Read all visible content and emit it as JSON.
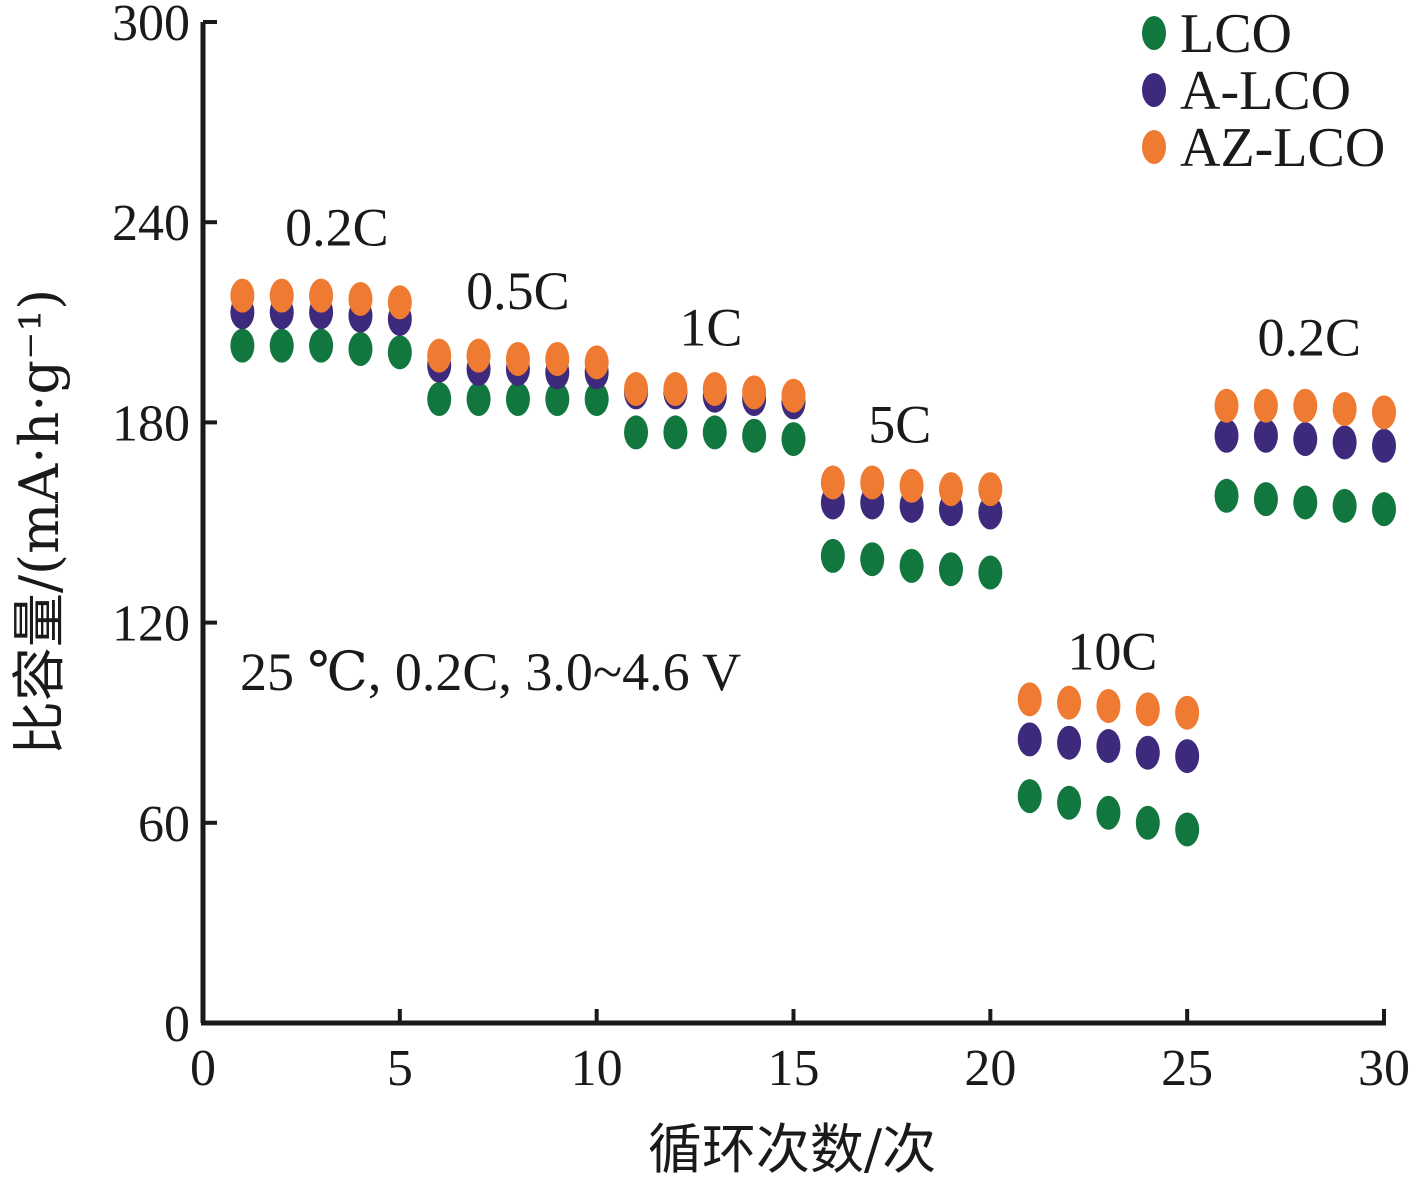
{
  "chart_data": {
    "type": "scatter",
    "xlabel": "循环次数/次",
    "ylabel": "比容量/(mA·h·g⁻¹)",
    "xlim": [
      0,
      30
    ],
    "ylim": [
      0,
      300
    ],
    "xticks": [
      0,
      5,
      10,
      15,
      20,
      25,
      30
    ],
    "yticks": [
      0,
      60,
      120,
      180,
      240,
      300
    ],
    "grid": false,
    "legend_position": "top-right",
    "condition_text": "25 ℃, 0.2C, 3.0~4.6 V",
    "rate_labels": [
      {
        "text": "0.2C",
        "x": 3.4,
        "y": 233
      },
      {
        "text": "0.5C",
        "x": 8.0,
        "y": 214
      },
      {
        "text": "1C",
        "x": 12.9,
        "y": 203
      },
      {
        "text": "5C",
        "x": 17.7,
        "y": 174
      },
      {
        "text": "10C",
        "x": 23.1,
        "y": 106
      },
      {
        "text": "0.2C",
        "x": 28.1,
        "y": 200
      }
    ],
    "x": [
      1,
      2,
      3,
      4,
      5,
      6,
      7,
      8,
      9,
      10,
      11,
      12,
      13,
      14,
      15,
      16,
      17,
      18,
      19,
      20,
      21,
      22,
      23,
      24,
      25,
      26,
      27,
      28,
      29,
      30
    ],
    "series": [
      {
        "name": "LCO",
        "color": "#12773f",
        "values": [
          203,
          203,
          203,
          202,
          201,
          187,
          187,
          187,
          187,
          187,
          177,
          177,
          177,
          176,
          175,
          140,
          139,
          137,
          136,
          135,
          68,
          66,
          63,
          60,
          58,
          158,
          157,
          156,
          155,
          154
        ]
      },
      {
        "name": "A-LCO",
        "color": "#3d2a7c",
        "values": [
          213,
          213,
          213,
          212,
          211,
          197,
          196,
          196,
          195,
          195,
          189,
          189,
          188,
          187,
          186,
          156,
          156,
          155,
          154,
          153,
          85,
          84,
          83,
          81,
          80,
          176,
          176,
          175,
          174,
          173
        ]
      },
      {
        "name": "AZ-LCO",
        "color": "#ef7a32",
        "values": [
          218,
          218,
          218,
          217,
          216,
          200,
          200,
          199,
          199,
          198,
          190,
          190,
          190,
          189,
          188,
          162,
          162,
          161,
          160,
          160,
          97,
          96,
          95,
          94,
          93,
          185,
          185,
          185,
          184,
          183
        ]
      }
    ]
  }
}
